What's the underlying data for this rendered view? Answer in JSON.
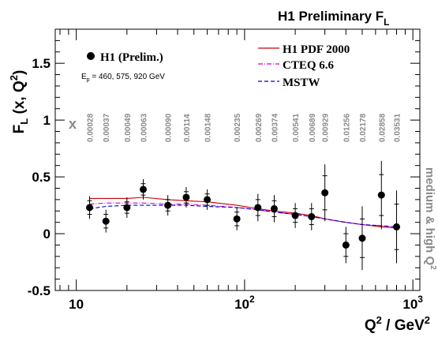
{
  "header_title": "H1 Preliminary F",
  "header_title_sub": "L",
  "chart_data": {
    "type": "scatter",
    "x_scale": "log",
    "xlim": [
      7.5,
      1100
    ],
    "ylim": [
      -0.5,
      1.8
    ],
    "grid": false,
    "legend_placement": "top-right",
    "xlabel": "Q",
    "xlabel_sup": "2",
    "xlabel_rest": " / GeV",
    "xlabel_sup2": "2",
    "ylabel": "F",
    "ylabel_sub": "L",
    "ylabel_rest": " (x, Q",
    "ylabel_sup": "2",
    "ylabel_close": ")",
    "y_ticks": [
      "-0.5",
      "0",
      "0.5",
      "1",
      "1.5"
    ],
    "y_tick_values": [
      -0.5,
      0,
      0.5,
      1,
      1.5
    ],
    "x_ticks": [
      {
        "value": 10,
        "base": "10",
        "exp": ""
      },
      {
        "value": 100,
        "base": "10",
        "exp": "2"
      },
      {
        "value": 1000,
        "base": "10",
        "exp": "3"
      }
    ],
    "x_marker_label": "x",
    "side_label": "medium & high Q",
    "side_label_sup": "2",
    "data_legend": {
      "label": "H1 (Prelim.)",
      "energy_prefix": "E",
      "energy_sub": "p",
      "energy_rest": " = 460, 575, 920 GeV"
    },
    "series": [
      {
        "name": "H1 (Prelim.)",
        "kind": "points",
        "color": "#000000",
        "points": [
          {
            "q2": 12,
            "x": "0.00028",
            "y": 0.23,
            "stat": 0.06,
            "tot": 0.1
          },
          {
            "q2": 15,
            "x": "0.00037",
            "y": 0.11,
            "stat": 0.06,
            "tot": 0.1
          },
          {
            "q2": 20,
            "x": "0.00049",
            "y": 0.23,
            "stat": 0.05,
            "tot": 0.09
          },
          {
            "q2": 25,
            "x": "0.00063",
            "y": 0.39,
            "stat": 0.05,
            "tot": 0.09
          },
          {
            "q2": 35,
            "x": "0.00090",
            "y": 0.25,
            "stat": 0.05,
            "tot": 0.09
          },
          {
            "q2": 45,
            "x": "0.00114",
            "y": 0.32,
            "stat": 0.05,
            "tot": 0.09
          },
          {
            "q2": 60,
            "x": "0.00148",
            "y": 0.3,
            "stat": 0.05,
            "tot": 0.09
          },
          {
            "q2": 90,
            "x": "0.00235",
            "y": 0.13,
            "stat": 0.06,
            "tot": 0.1
          },
          {
            "q2": 120,
            "x": "0.00269",
            "y": 0.23,
            "stat": 0.07,
            "tot": 0.12
          },
          {
            "q2": 150,
            "x": "0.00374",
            "y": 0.22,
            "stat": 0.07,
            "tot": 0.12
          },
          {
            "q2": 200,
            "x": "0.00541",
            "y": 0.16,
            "stat": 0.06,
            "tot": 0.11
          },
          {
            "q2": 250,
            "x": "0.00689",
            "y": 0.15,
            "stat": 0.07,
            "tot": 0.12
          },
          {
            "q2": 300,
            "x": "0.00929",
            "y": 0.36,
            "stat": 0.15,
            "tot": 0.25
          },
          {
            "q2": 400,
            "x": "0.01256",
            "y": -0.1,
            "stat": 0.1,
            "tot": 0.16
          },
          {
            "q2": 500,
            "x": "0.02178",
            "y": -0.04,
            "stat": 0.17,
            "tot": 0.28
          },
          {
            "q2": 650,
            "x": "0.02858",
            "y": 0.34,
            "stat": 0.18,
            "tot": 0.3
          },
          {
            "q2": 800,
            "x": "0.03531",
            "y": 0.06,
            "stat": 0.2,
            "tot": 0.32
          }
        ]
      },
      {
        "name": "H1 PDF 2000",
        "kind": "line",
        "style": "solid",
        "color": "#cc0000",
        "x": [
          12,
          15,
          20,
          25,
          35,
          45,
          60,
          90,
          120,
          150,
          200,
          250,
          300,
          400,
          500,
          650,
          800
        ],
        "y": [
          0.31,
          0.31,
          0.31,
          0.32,
          0.3,
          0.29,
          0.28,
          0.25,
          0.22,
          0.2,
          0.18,
          0.16,
          0.13,
          0.1,
          0.08,
          0.06,
          0.05
        ]
      },
      {
        "name": "CTEQ 6.6",
        "kind": "line",
        "style": "dashdot",
        "color": "#cc00cc",
        "x": [
          12,
          15,
          20,
          25,
          35,
          45,
          60,
          90,
          120,
          150,
          200,
          250,
          300,
          400,
          500,
          650,
          800
        ],
        "y": [
          0.26,
          0.27,
          0.27,
          0.27,
          0.26,
          0.26,
          0.25,
          0.23,
          0.21,
          0.19,
          0.17,
          0.15,
          0.13,
          0.1,
          0.08,
          0.07,
          0.06
        ]
      },
      {
        "name": "MSTW",
        "kind": "line",
        "style": "dashed",
        "color": "#0000cc",
        "x": [
          12,
          15,
          20,
          25,
          35,
          45,
          60,
          90,
          120,
          150,
          200,
          250,
          300,
          400,
          500,
          650,
          800
        ],
        "y": [
          0.22,
          0.24,
          0.25,
          0.25,
          0.25,
          0.25,
          0.24,
          0.23,
          0.21,
          0.19,
          0.17,
          0.15,
          0.13,
          0.1,
          0.08,
          0.07,
          0.06
        ]
      }
    ]
  }
}
